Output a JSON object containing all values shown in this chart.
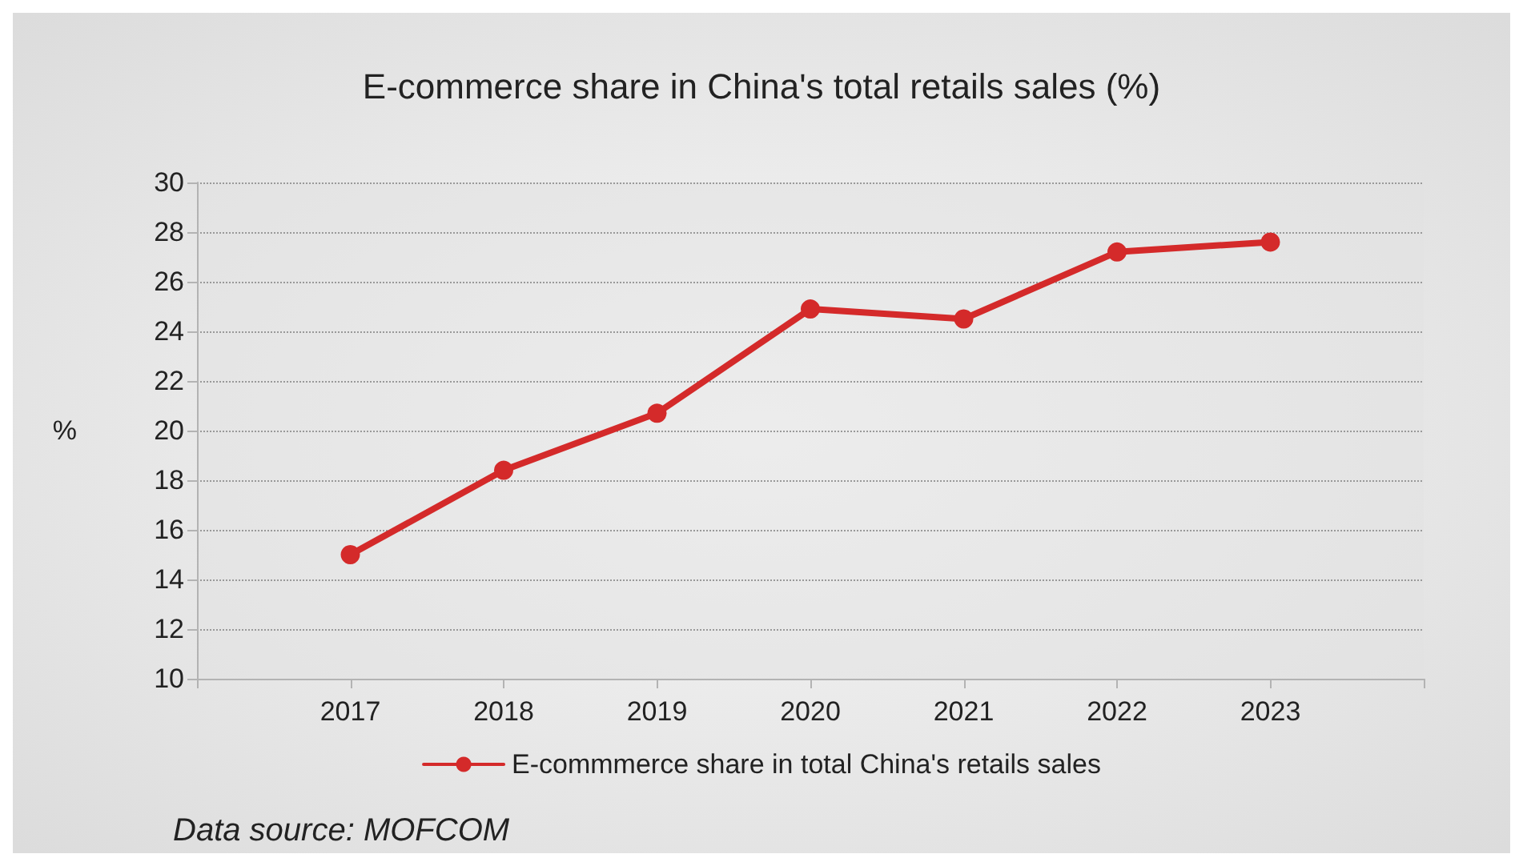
{
  "chart_data": {
    "type": "line",
    "title": "E-commerce share in China's total retails sales (%)",
    "ylabel": "%",
    "x": [
      2017,
      2018,
      2019,
      2020,
      2021,
      2022,
      2023
    ],
    "series": [
      {
        "name": "E-commmerce share in total China's retails sales",
        "color": "#d42a2a",
        "values": [
          15.0,
          18.4,
          20.7,
          24.9,
          24.5,
          27.2,
          27.6
        ]
      }
    ],
    "xlim": [
      2016,
      2024
    ],
    "xticks": [
      {
        "value": 2016,
        "label": null
      },
      2017,
      2018,
      2019,
      2020,
      2021,
      2022,
      2023,
      {
        "value": 2024,
        "label": null
      }
    ],
    "ylim": [
      10,
      30
    ],
    "yticks": [
      10,
      12,
      14,
      16,
      18,
      20,
      22,
      24,
      26,
      28,
      30
    ],
    "grid": "y",
    "legend": "bottom",
    "marker": "circle",
    "line_style": "solid",
    "annotations": [
      "Data source: MOFCOM"
    ]
  }
}
